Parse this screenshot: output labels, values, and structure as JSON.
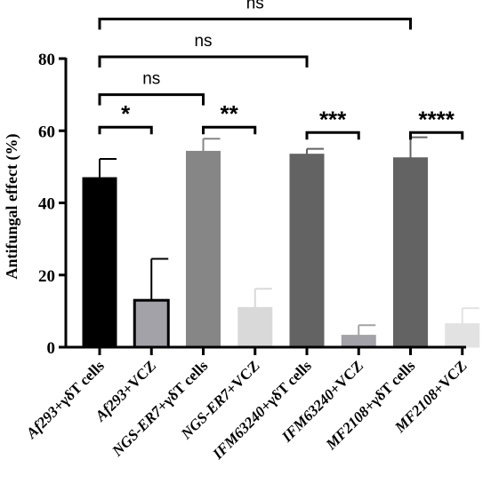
{
  "chart_data": {
    "type": "bar",
    "ylabel": "Antifungal effect (%)",
    "ylim": [
      0,
      80
    ],
    "yticks": [
      0,
      20,
      40,
      60,
      80
    ],
    "categories": [
      {
        "pre": "Af293",
        "post": "+γδT cells"
      },
      {
        "pre": "Af293",
        "post": "+VCZ"
      },
      {
        "pre": "NGS-ER7",
        "post": "+γδT cells"
      },
      {
        "pre": "NGS-ER7",
        "post": "+VCZ"
      },
      {
        "pre": "IFM63240",
        "post": "+γδT cells"
      },
      {
        "pre": "IFM63240",
        "post": "+VCZ"
      },
      {
        "pre": "MF2108",
        "post": "+γδT cells"
      },
      {
        "pre": "MF2108",
        "post": "+VCZ"
      }
    ],
    "values": [
      47,
      13,
      54.3,
      11,
      53.5,
      3.3,
      52.5,
      6.5
    ],
    "errors": [
      5.2,
      11.5,
      3.5,
      5.2,
      1.5,
      2.8,
      5.7,
      4.3
    ],
    "bar_colors": [
      "#000000",
      "#a3a2a8",
      "#868686",
      "#d9d9d9",
      "#636363",
      "#a3a2a8",
      "#636363",
      "#e2e2e2"
    ],
    "bar_outlines": [
      "#000000",
      "#000000",
      "#868686",
      "#d9d9d9",
      "#636363",
      "#a3a2a8",
      "#636363",
      "#e2e2e2"
    ],
    "significance": [
      {
        "from": 0,
        "to": 1,
        "y": 61,
        "label": "*"
      },
      {
        "from": 2,
        "to": 3,
        "y": 61,
        "label": "**"
      },
      {
        "from": 4,
        "to": 5,
        "y": 59.5,
        "label": "***"
      },
      {
        "from": 6,
        "to": 7,
        "y": 59.5,
        "label": "****"
      },
      {
        "from": 0,
        "to": 2,
        "y": 70,
        "label": "ns"
      },
      {
        "from": 0,
        "to": 4,
        "y": 80.5,
        "label": "ns"
      },
      {
        "from": 0,
        "to": 6,
        "y": 91,
        "label": "ns"
      }
    ]
  }
}
